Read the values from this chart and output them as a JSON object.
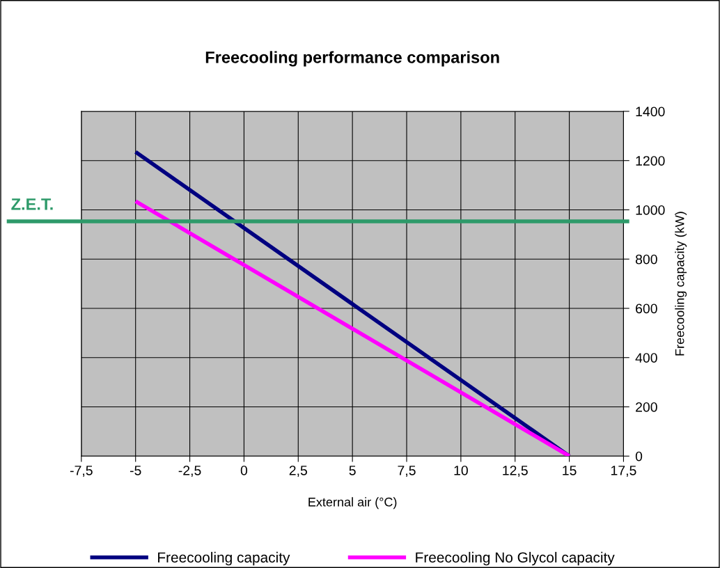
{
  "chart_data": {
    "type": "line",
    "title": "Freecooling performance comparison",
    "xlabel": "External air (°C)",
    "ylabel": "Freecooling capacity (kW)",
    "x": [
      -5,
      15
    ],
    "series": [
      {
        "name": "Freecooling capacity",
        "color": "#000080",
        "values": [
          1235,
          0
        ]
      },
      {
        "name": "Freecooling No Glycol capacity",
        "color": "#ff00ff",
        "values": [
          1035,
          0
        ]
      }
    ],
    "xlim": [
      -7.5,
      17.5
    ],
    "xticks": [
      {
        "value": -7.5,
        "label": "-7,5"
      },
      -5,
      {
        "value": -2.5,
        "label": "-2,5"
      },
      0,
      {
        "value": 2.5,
        "label": "2,5"
      },
      5,
      {
        "value": 7.5,
        "label": "7,5"
      },
      10,
      {
        "value": 12.5,
        "label": "12,5"
      },
      15,
      {
        "value": 17.5,
        "label": "17,5"
      }
    ],
    "ylim": [
      0,
      1400
    ],
    "yticks": [
      0,
      200,
      400,
      600,
      800,
      1000,
      1200,
      1400
    ],
    "ref_lines": [
      {
        "axis": "y",
        "value": 953,
        "label": "Z.E.T.",
        "color": "#2e9a6a"
      }
    ],
    "grid": true,
    "legend": "bottom",
    "marker": "none",
    "line_style": "solid"
  }
}
